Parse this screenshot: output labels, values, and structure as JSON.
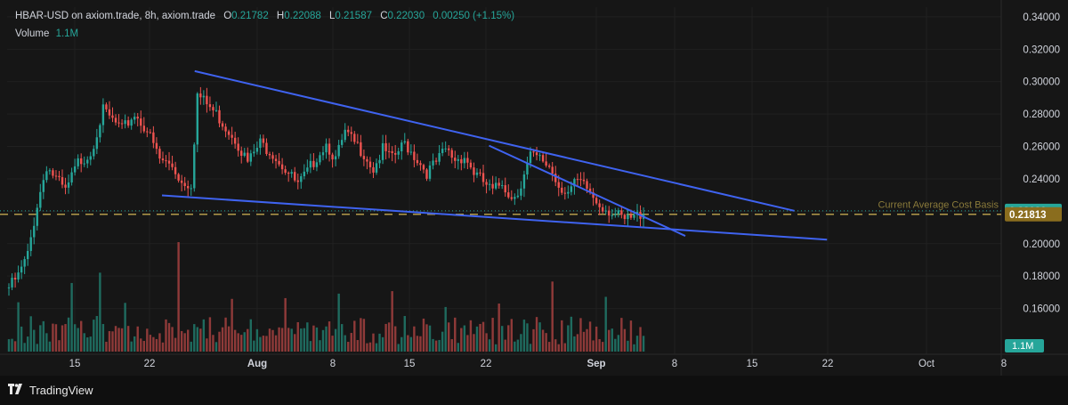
{
  "header": {
    "symbol": "HBAR-USD on axiom.trade, 8h, axiom.trade",
    "o_label": "O",
    "o_value": "0.21782",
    "h_label": "H",
    "h_value": "0.22088",
    "l_label": "L",
    "l_value": "0.21587",
    "c_label": "C",
    "c_value": "0.22030",
    "change": "0.00250 (+1.15%)",
    "volume_label": "Volume",
    "volume_value": "1.1M"
  },
  "footer": {
    "brand": "TradingView",
    "brand_icon": "tradingview-logo-icon"
  },
  "chart_data": {
    "type": "candlestick",
    "symbol": "HBAR-USD",
    "timeframe": "8h",
    "y_ticks": [
      "0.34000",
      "0.32000",
      "0.30000",
      "0.28000",
      "0.26000",
      "0.24000",
      "0.22000",
      "0.20000",
      "0.18000",
      "0.16000"
    ],
    "ylim": [
      0.1367,
      0.3427
    ],
    "x_ticks": [
      "15",
      "22",
      "Aug",
      "8",
      "15",
      "22",
      "Sep",
      "8",
      "15",
      "22",
      "Oct",
      "8"
    ],
    "x_tick_bold": [
      "Aug",
      "Sep"
    ],
    "price_labels": [
      {
        "value": 0.2203,
        "text": "0.22030",
        "color": "#26a69a"
      },
      {
        "value": 0.21813,
        "text": "0.21813",
        "color": "#8a6d1e"
      }
    ],
    "volume_label": {
      "text": "1.1M",
      "color": "#26a69a"
    },
    "annotation": {
      "text": "Current Average Cost Basis",
      "value": 0.2216,
      "color": "#8a7a3a"
    },
    "cost_basis_line": 0.21813,
    "last_price_line": 0.2203,
    "colors": {
      "up": "#26a69a",
      "down": "#ef5350",
      "trendline": "#3f63f0",
      "volume_up": "#1f6b5f",
      "volume_down": "#8f3a39"
    },
    "trendlines": [
      {
        "name": "upper-wedge-line",
        "from": [
          "Jul 26",
          0.3065
        ],
        "to": [
          "Sep 19",
          0.2203
        ]
      },
      {
        "name": "lower-wedge-line",
        "from": [
          "Jul 23",
          0.2298
        ],
        "to": [
          "Sep 22",
          0.2025
        ]
      },
      {
        "name": "inner-descending-line",
        "from": [
          "Aug 22",
          0.2605
        ],
        "to": [
          "Sep 9",
          0.2048
        ]
      }
    ],
    "price_path": [
      [
        0,
        0.173
      ],
      [
        3,
        0.18
      ],
      [
        6,
        0.193
      ],
      [
        9,
        0.224
      ],
      [
        12,
        0.248
      ],
      [
        15,
        0.24
      ],
      [
        18,
        0.232
      ],
      [
        22,
        0.25
      ],
      [
        26,
        0.256
      ],
      [
        30,
        0.282
      ],
      [
        33,
        0.276
      ],
      [
        36,
        0.27
      ],
      [
        40,
        0.28
      ],
      [
        44,
        0.27
      ],
      [
        48,
        0.252
      ],
      [
        52,
        0.248
      ],
      [
        55,
        0.238
      ],
      [
        58,
        0.237
      ],
      [
        60,
        0.292
      ],
      [
        63,
        0.286
      ],
      [
        66,
        0.28
      ],
      [
        69,
        0.272
      ],
      [
        72,
        0.265
      ],
      [
        76,
        0.25
      ],
      [
        80,
        0.262
      ],
      [
        84,
        0.256
      ],
      [
        88,
        0.246
      ],
      [
        92,
        0.236
      ],
      [
        95,
        0.244
      ],
      [
        98,
        0.254
      ],
      [
        101,
        0.262
      ],
      [
        104,
        0.252
      ],
      [
        107,
        0.268
      ],
      [
        110,
        0.262
      ],
      [
        113,
        0.256
      ],
      [
        116,
        0.246
      ],
      [
        119,
        0.258
      ],
      [
        122,
        0.252
      ],
      [
        126,
        0.262
      ],
      [
        130,
        0.252
      ],
      [
        133,
        0.244
      ],
      [
        136,
        0.25
      ],
      [
        139,
        0.258
      ],
      [
        142,
        0.252
      ],
      [
        145,
        0.254
      ],
      [
        148,
        0.244
      ],
      [
        151,
        0.238
      ],
      [
        154,
        0.232
      ],
      [
        157,
        0.238
      ],
      [
        160,
        0.228
      ],
      [
        163,
        0.236
      ],
      [
        166,
        0.254
      ],
      [
        169,
        0.252
      ],
      [
        172,
        0.248
      ],
      [
        175,
        0.236
      ],
      [
        178,
        0.232
      ],
      [
        181,
        0.238
      ],
      [
        184,
        0.234
      ],
      [
        187,
        0.226
      ],
      [
        190,
        0.222
      ],
      [
        193,
        0.218
      ],
      [
        196,
        0.214
      ],
      [
        199,
        0.216
      ],
      [
        202,
        0.22
      ]
    ]
  }
}
